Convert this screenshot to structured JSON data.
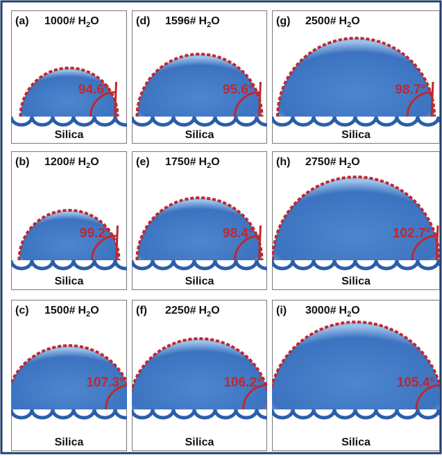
{
  "panels": [
    {
      "label": "(a)",
      "count": "1000#",
      "formula": [
        "H",
        "2",
        "O"
      ],
      "angle": "94.6°",
      "substrate": "Silica"
    },
    {
      "label": "(b)",
      "count": "1200#",
      "formula": [
        "H",
        "2",
        "O"
      ],
      "angle": "99.2°",
      "substrate": "Silica"
    },
    {
      "label": "(c)",
      "count": "1500#",
      "formula": [
        "H",
        "2",
        "O"
      ],
      "angle": "107.3°",
      "substrate": "Silica"
    },
    {
      "label": "(d)",
      "count": "1596#",
      "formula": [
        "H",
        "2",
        "O"
      ],
      "angle": "95.6°",
      "substrate": "Silica"
    },
    {
      "label": "(e)",
      "count": "1750#",
      "formula": [
        "H",
        "2",
        "O"
      ],
      "angle": "98.4°",
      "substrate": "Silica"
    },
    {
      "label": "(f)",
      "count": "2250#",
      "formula": [
        "H",
        "2",
        "O"
      ],
      "angle": "106.2°",
      "substrate": "Silica"
    },
    {
      "label": "(g)",
      "count": "2500#",
      "formula": [
        "H",
        "2",
        "O"
      ],
      "angle": "98.7°",
      "substrate": "Silica"
    },
    {
      "label": "(h)",
      "count": "2750#",
      "formula": [
        "H",
        "2",
        "O"
      ],
      "angle": "102.7°",
      "substrate": "Silica"
    },
    {
      "label": "(i)",
      "count": "3000#",
      "formula": [
        "H",
        "2",
        "O"
      ],
      "angle": "105.4°",
      "substrate": "Silica"
    }
  ]
}
